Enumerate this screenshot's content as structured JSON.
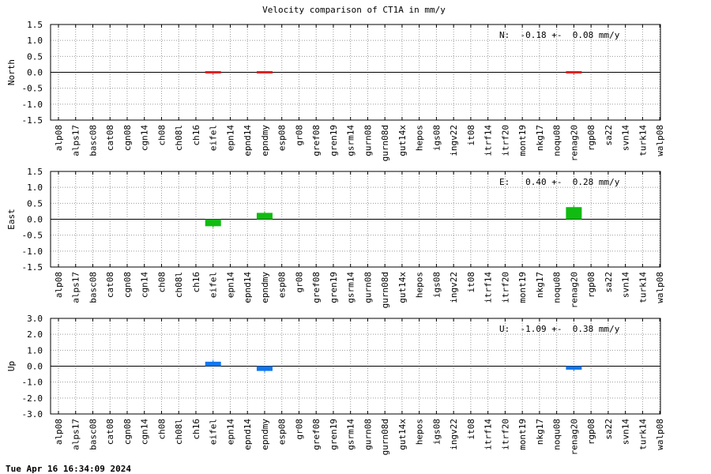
{
  "title": "Velocity comparison of CT1A in mm/y",
  "footer": "Tue Apr 16 16:34:09 2024",
  "colors": {
    "north": "#dd2222",
    "east": "#11bb11",
    "up": "#1177ee",
    "grid": "#999999",
    "zero": "#000000"
  },
  "chart_data": [
    {
      "type": "bar",
      "ylabel": "North",
      "ylim": [
        -1.5,
        1.5
      ],
      "yticks": [
        "-1.5",
        "-1.0",
        "-0.5",
        "0.0",
        "0.5",
        "1.0",
        "1.5"
      ],
      "grid": true,
      "annotation": "N:  -0.18 +-  0.08 mm/y",
      "categories": [
        "alp08",
        "alps17",
        "basc08",
        "cat08",
        "cgn08",
        "cgn14",
        "ch08",
        "ch08l",
        "ch16",
        "eifel",
        "epn14",
        "epnd14",
        "epndmy",
        "esp08",
        "gr08",
        "gref08",
        "gren19",
        "gsrm14",
        "gurn08",
        "gurn08d",
        "gut14x",
        "hepos",
        "igs08",
        "ingv22",
        "it08",
        "itrf14",
        "itrf20",
        "mont19",
        "nkg17",
        "noqu08",
        "renag20",
        "rgp08",
        "sa22",
        "svn14",
        "turk14",
        "walp08"
      ],
      "values": [
        null,
        null,
        null,
        null,
        null,
        null,
        null,
        null,
        null,
        -0.06,
        null,
        null,
        0.02,
        null,
        null,
        null,
        null,
        null,
        null,
        null,
        null,
        null,
        null,
        null,
        null,
        null,
        null,
        null,
        null,
        null,
        -0.06,
        null,
        null,
        null,
        null,
        null
      ],
      "errors": [
        null,
        null,
        null,
        null,
        null,
        null,
        null,
        null,
        null,
        0.02,
        null,
        null,
        0.02,
        null,
        null,
        null,
        null,
        null,
        null,
        null,
        null,
        null,
        null,
        null,
        null,
        null,
        null,
        null,
        null,
        null,
        0.02,
        null,
        null,
        null,
        null,
        null
      ]
    },
    {
      "type": "bar",
      "ylabel": "East",
      "ylim": [
        -1.5,
        1.5
      ],
      "yticks": [
        "-1.5",
        "-1.0",
        "-0.5",
        "0.0",
        "0.5",
        "1.0",
        "1.5"
      ],
      "grid": true,
      "annotation": "E:   0.40 +-  0.28 mm/y",
      "categories": [
        "alp08",
        "alps17",
        "basc08",
        "cat08",
        "cgn08",
        "cgn14",
        "ch08",
        "ch08l",
        "ch16",
        "eifel",
        "epn14",
        "epnd14",
        "epndmy",
        "esp08",
        "gr08",
        "gref08",
        "gren19",
        "gsrm14",
        "gurn08",
        "gurn08d",
        "gut14x",
        "hepos",
        "igs08",
        "ingv22",
        "it08",
        "itrf14",
        "itrf20",
        "mont19",
        "nkg17",
        "noqu08",
        "renag20",
        "rgp08",
        "sa22",
        "svn14",
        "turk14",
        "walp08"
      ],
      "values": [
        null,
        null,
        null,
        null,
        null,
        null,
        null,
        null,
        null,
        -0.22,
        null,
        null,
        0.2,
        null,
        null,
        null,
        null,
        null,
        null,
        null,
        null,
        null,
        null,
        null,
        null,
        null,
        null,
        null,
        null,
        null,
        0.38,
        null,
        null,
        null,
        null,
        null
      ],
      "errors": [
        null,
        null,
        null,
        null,
        null,
        null,
        null,
        null,
        null,
        0.05,
        null,
        null,
        0.05,
        null,
        null,
        null,
        null,
        null,
        null,
        null,
        null,
        null,
        null,
        null,
        null,
        null,
        null,
        null,
        null,
        null,
        0.05,
        null,
        null,
        null,
        null,
        null
      ]
    },
    {
      "type": "bar",
      "ylabel": "Up",
      "ylim": [
        -3.0,
        3.0
      ],
      "yticks": [
        "-3.0",
        "-2.0",
        "-1.0",
        "0.0",
        "1.0",
        "2.0",
        "3.0"
      ],
      "grid": true,
      "annotation": "U:  -1.09 +-  0.38 mm/y",
      "categories": [
        "alp08",
        "alps17",
        "basc08",
        "cat08",
        "cgn08",
        "cgn14",
        "ch08",
        "ch08l",
        "ch16",
        "eifel",
        "epn14",
        "epnd14",
        "epndmy",
        "esp08",
        "gr08",
        "gref08",
        "gren19",
        "gsrm14",
        "gurn08",
        "gurn08d",
        "gut14x",
        "hepos",
        "igs08",
        "ingv22",
        "it08",
        "itrf14",
        "itrf20",
        "mont19",
        "nkg17",
        "noqu08",
        "renag20",
        "rgp08",
        "sa22",
        "svn14",
        "turk14",
        "walp08"
      ],
      "values": [
        null,
        null,
        null,
        null,
        null,
        null,
        null,
        null,
        null,
        0.28,
        null,
        null,
        -0.3,
        null,
        null,
        null,
        null,
        null,
        null,
        null,
        null,
        null,
        null,
        null,
        null,
        null,
        null,
        null,
        null,
        null,
        -0.22,
        null,
        null,
        null,
        null,
        null
      ],
      "errors": [
        null,
        null,
        null,
        null,
        null,
        null,
        null,
        null,
        null,
        0.1,
        null,
        null,
        0.1,
        null,
        null,
        null,
        null,
        null,
        null,
        null,
        null,
        null,
        null,
        null,
        null,
        null,
        null,
        null,
        null,
        null,
        0.1,
        null,
        null,
        null,
        null,
        null
      ]
    }
  ]
}
